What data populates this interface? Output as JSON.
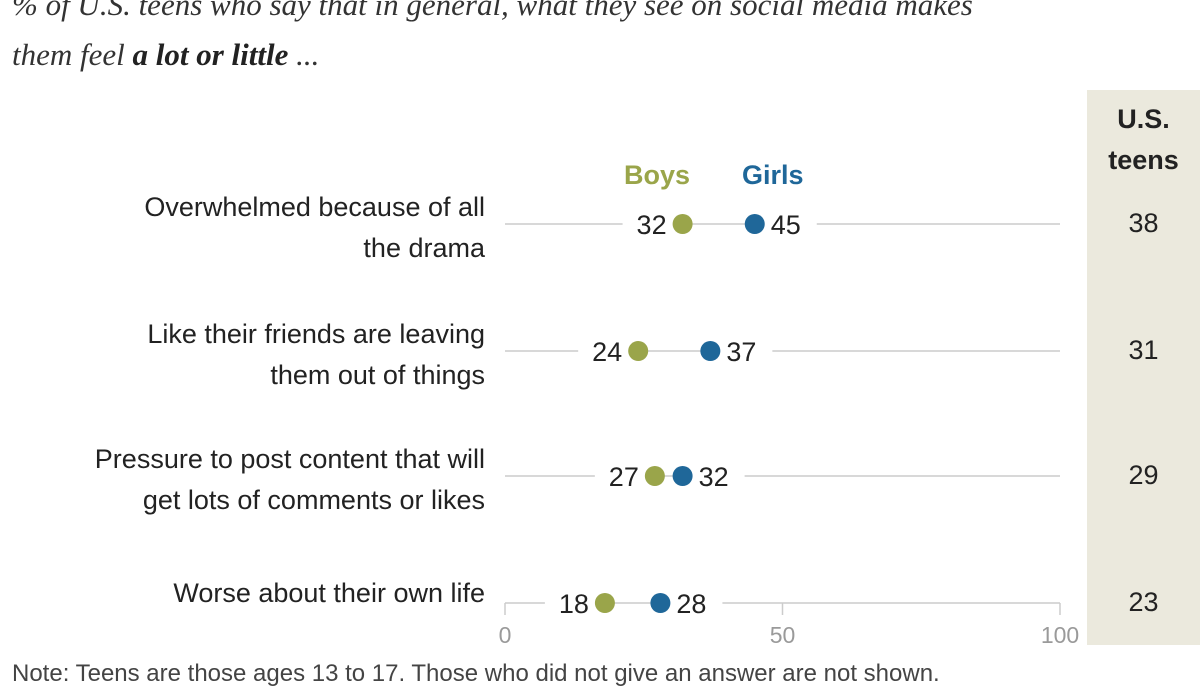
{
  "subtitle": {
    "line1": "% of U.S. teens who say that in general, what they see on social media makes",
    "line2_lead": "them feel ",
    "line2_bold": "a lot or little",
    "line2_tail": " ..."
  },
  "teens_header": [
    "U.S.",
    "teens"
  ],
  "footnote": "Note: Teens are those ages 13 to 17. Those who did not give an answer are not shown.",
  "colors": {
    "boys": "#9aa54a",
    "girls": "#1f6799",
    "line": "#cccccc",
    "column_bg": "#ebe9dd"
  },
  "chart_data": {
    "type": "dot",
    "series": [
      {
        "name": "Boys",
        "values": [
          32,
          24,
          27,
          18
        ]
      },
      {
        "name": "Girls",
        "values": [
          45,
          37,
          32,
          28
        ]
      }
    ],
    "categories": [
      [
        "Overwhelmed because of all",
        "the drama"
      ],
      [
        "Like their friends are leaving",
        "them out of things"
      ],
      [
        "Pressure to post content that will",
        "get lots of comments or likes"
      ],
      [
        "Worse about their own life"
      ]
    ],
    "us_teens": [
      38,
      31,
      29,
      23
    ],
    "xlim": [
      0,
      100
    ],
    "x_ticks": [
      0,
      50,
      100
    ],
    "grid": false,
    "legend": "above first row"
  }
}
